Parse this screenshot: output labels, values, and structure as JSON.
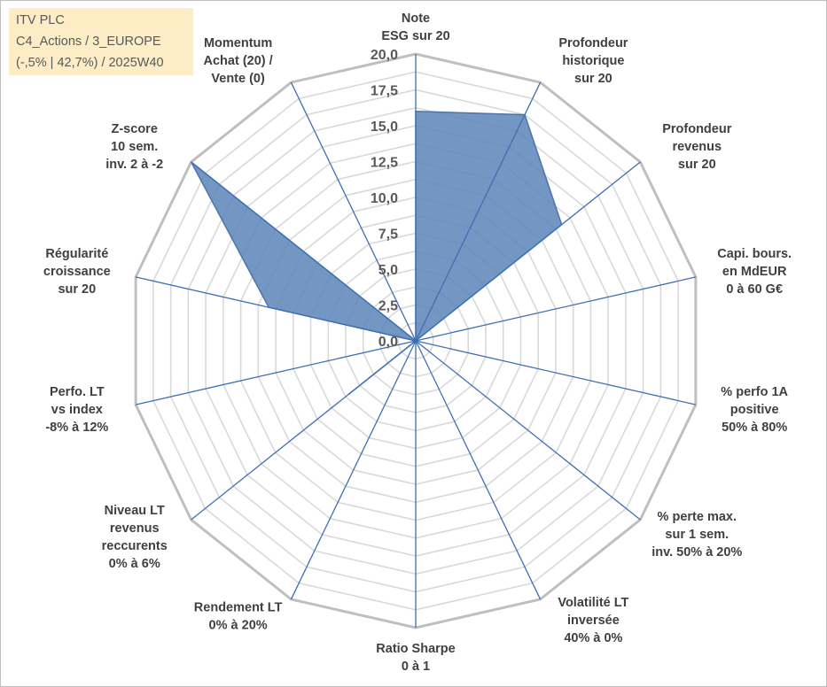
{
  "title_box": {
    "line1": "ITV PLC",
    "line2": "C4_Actions / 3_EUROPE",
    "line3": "(-,5% | 42,7%) / 2025W40"
  },
  "colors": {
    "fill": "#5b84b8",
    "stroke": "#4a75ad",
    "spoke": "#3f6fb3",
    "ring_outer": "#bfbfbf",
    "ring_inner": "#d9d9d9",
    "title_bg": "#fdedc7"
  },
  "chart_data": {
    "type": "radar",
    "rmin": 0,
    "rmax": 20,
    "tick_values": [
      0,
      2.5,
      5,
      7.5,
      10,
      12.5,
      15,
      17.5,
      20
    ],
    "tick_labels": [
      "0,0",
      "2,5",
      "5,0",
      "7,5",
      "10,0",
      "12,5",
      "15,0",
      "17,5",
      "20,0"
    ],
    "grid": true,
    "axes": [
      {
        "lines": [
          "Note",
          "ESG sur 20"
        ]
      },
      {
        "lines": [
          "Profondeur",
          "historique",
          "sur 20"
        ]
      },
      {
        "lines": [
          "Profondeur",
          "revenus",
          "sur 20"
        ]
      },
      {
        "lines": [
          "Capi. bours.",
          "en MdEUR",
          "0 à 60 G€"
        ]
      },
      {
        "lines": [
          "% perfo 1A",
          "positive",
          "50% à 80%"
        ]
      },
      {
        "lines": [
          "% perte max.",
          "sur 1 sem.",
          "inv. 50% à 20%"
        ]
      },
      {
        "lines": [
          "Volatilité LT",
          "inversée",
          "40% à 0%"
        ]
      },
      {
        "lines": [
          "Ratio Sharpe",
          "0 à 1"
        ]
      },
      {
        "lines": [
          "Rendement LT",
          "0% à 20%"
        ]
      },
      {
        "lines": [
          "Niveau LT",
          "revenus",
          "reccurents",
          "0% à 6%"
        ]
      },
      {
        "lines": [
          "Perfo. LT",
          "vs index",
          "-8% à 12%"
        ]
      },
      {
        "lines": [
          "Régularité",
          "croissance",
          "sur 20"
        ]
      },
      {
        "lines": [
          "Z-score",
          "10 sem.",
          "inv. 2 à -2"
        ]
      },
      {
        "lines": [
          "Momentum",
          "Achat (20) /",
          "Vente (0)"
        ]
      }
    ],
    "series": [
      {
        "values": [
          16,
          17.5,
          13,
          0,
          0,
          0,
          0,
          0,
          0,
          6,
          0,
          10.5,
          20,
          0
        ]
      }
    ]
  }
}
